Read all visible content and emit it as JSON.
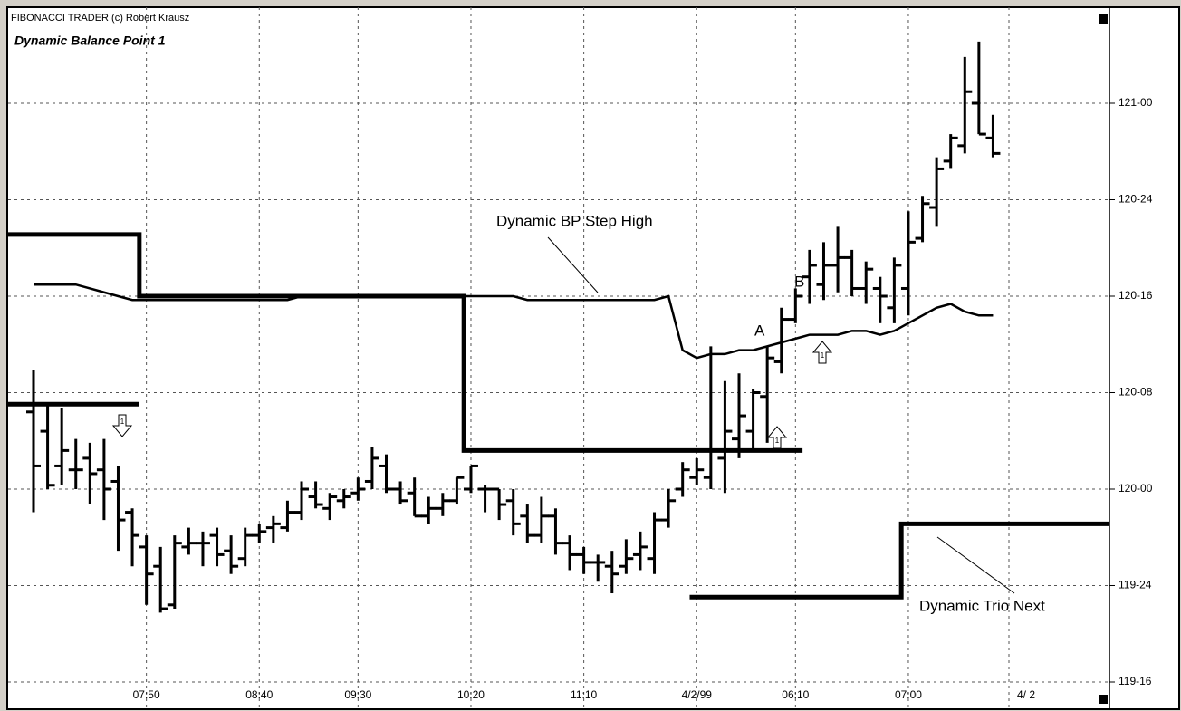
{
  "chart_data": {
    "type": "ohlc",
    "header": "FIBONACCI TRADER (c) Robert Krausz",
    "title": "Dynamic Balance Point 1",
    "categories": [
      null,
      null,
      null,
      null,
      null,
      null,
      null,
      null,
      "07:50",
      null,
      null,
      null,
      null,
      null,
      null,
      null,
      "08:40",
      null,
      null,
      null,
      null,
      null,
      null,
      "09:30",
      null,
      null,
      null,
      null,
      null,
      null,
      null,
      "10:20",
      null,
      null,
      null,
      null,
      null,
      null,
      null,
      "11:10",
      null,
      null,
      null,
      null,
      null,
      null,
      null,
      "4/2/99",
      null,
      null,
      null,
      null,
      null,
      null,
      "06:10",
      null,
      null,
      null,
      null,
      null,
      null,
      null,
      "07:00",
      null,
      null,
      null,
      null,
      null,
      null
    ],
    "end_date_label": "4/ 2",
    "high": [
      120.31,
      120.22,
      120.21,
      120.13,
      120.12,
      120.13,
      120.06,
      119.95,
      119.88,
      119.85,
      119.88,
      119.9,
      119.89,
      119.9,
      119.88,
      119.9,
      119.91,
      119.93,
      119.97,
      120.02,
      120.02,
      119.99,
      120.0,
      120.03,
      120.11,
      120.09,
      120.02,
      120.03,
      119.98,
      119.99,
      120.03,
      120.06,
      120.01,
      120.0,
      120.0,
      119.96,
      119.98,
      119.95,
      119.88,
      119.85,
      119.83,
      119.84,
      119.87,
      119.89,
      119.94,
      120.0,
      120.07,
      120.08,
      120.37,
      120.28,
      120.3,
      120.26,
      120.37,
      120.47,
      120.52,
      120.62,
      120.64,
      120.68,
      120.62,
      120.59,
      120.55,
      120.6,
      120.72,
      120.76,
      120.86,
      120.92,
      121.12,
      121.16,
      120.97
    ],
    "low": [
      119.94,
      120.0,
      120.01,
      120.0,
      119.96,
      119.92,
      119.84,
      119.8,
      119.7,
      119.68,
      119.69,
      119.83,
      119.8,
      119.8,
      119.78,
      119.8,
      119.86,
      119.86,
      119.89,
      119.92,
      119.95,
      119.92,
      119.95,
      119.97,
      120.0,
      119.99,
      119.96,
      119.93,
      119.91,
      119.93,
      119.96,
      119.99,
      119.94,
      119.92,
      119.88,
      119.86,
      119.86,
      119.83,
      119.79,
      119.78,
      119.76,
      119.73,
      119.78,
      119.79,
      119.78,
      119.9,
      119.98,
      120.01,
      120.0,
      119.99,
      120.08,
      120.1,
      120.12,
      120.3,
      120.43,
      120.48,
      120.49,
      120.51,
      120.5,
      120.48,
      120.43,
      120.43,
      120.45,
      120.64,
      120.68,
      120.83,
      120.87,
      120.92,
      120.86
    ],
    "open": [
      120.2,
      120.15,
      120.06,
      120.05,
      120.08,
      120.05,
      120.02,
      119.94,
      119.85,
      119.8,
      119.7,
      119.85,
      119.86,
      119.88,
      119.84,
      119.82,
      119.88,
      119.9,
      119.9,
      119.94,
      119.98,
      119.95,
      119.97,
      119.99,
      120.02,
      120.06,
      120.0,
      119.99,
      119.93,
      119.95,
      119.97,
      120.0,
      120.0,
      120.0,
      119.97,
      119.93,
      119.88,
      119.93,
      119.86,
      119.83,
      119.81,
      119.8,
      119.8,
      119.83,
      119.82,
      119.92,
      120.0,
      120.03,
      120.03,
      120.08,
      120.13,
      120.15,
      120.24,
      120.33,
      120.44,
      120.55,
      120.53,
      120.58,
      120.6,
      120.52,
      120.52,
      120.47,
      120.52,
      120.65,
      120.73,
      120.85,
      120.89,
      121.0,
      120.91
    ],
    "close": [
      120.06,
      120.01,
      120.1,
      120.05,
      120.04,
      120.0,
      119.92,
      119.88,
      119.78,
      119.69,
      119.86,
      119.86,
      119.86,
      119.83,
      119.8,
      119.88,
      119.89,
      119.91,
      119.94,
      120.0,
      119.96,
      119.98,
      119.98,
      120.0,
      120.08,
      120.0,
      119.97,
      119.93,
      119.95,
      119.97,
      120.03,
      120.06,
      120.0,
      119.96,
      119.91,
      119.88,
      119.93,
      119.86,
      119.83,
      119.81,
      119.81,
      119.78,
      119.82,
      119.85,
      119.92,
      119.97,
      120.05,
      120.05,
      120.1,
      120.15,
      120.19,
      120.25,
      120.34,
      120.44,
      120.5,
      120.58,
      120.58,
      120.6,
      120.52,
      120.57,
      120.5,
      120.58,
      120.64,
      120.74,
      120.83,
      120.91,
      121.03,
      120.92,
      120.87
    ],
    "lines": [
      {
        "values": [
          120.53,
          120.53,
          120.53,
          120.53,
          120.52,
          120.51,
          120.5,
          120.49,
          120.49,
          120.49,
          120.49,
          120.49,
          120.49,
          120.49,
          120.49,
          120.49,
          120.49,
          120.49,
          120.49,
          120.5,
          120.5,
          120.5,
          120.5,
          120.5,
          120.5,
          120.5,
          120.5,
          120.5,
          120.5,
          120.5,
          120.5,
          120.5,
          120.5,
          120.5,
          120.5,
          120.49,
          120.49,
          120.49,
          120.49,
          120.49,
          120.49,
          120.49,
          120.49,
          120.49,
          120.49,
          120.5,
          120.36,
          120.34,
          120.35,
          120.35,
          120.36,
          120.36,
          120.37,
          120.38,
          120.39,
          120.4,
          120.4,
          120.4,
          120.41,
          120.41,
          120.4,
          120.41,
          120.43,
          120.45,
          120.47,
          120.48,
          120.46,
          120.45,
          120.45
        ],
        "width": 2.5,
        "step": false
      },
      {
        "values": [
          120.66,
          120.66,
          120.66,
          120.66,
          120.66,
          120.66,
          120.66,
          120.66,
          120.5,
          120.5,
          120.5,
          120.5,
          120.5,
          120.5,
          120.5,
          120.5,
          120.5,
          120.5,
          120.5,
          120.5,
          120.5,
          120.5,
          120.5,
          120.5,
          120.5,
          120.5,
          120.5,
          120.5,
          120.5,
          120.5,
          120.5,
          120.1,
          120.1,
          120.1,
          120.1,
          120.1,
          120.1,
          120.1,
          120.1,
          120.1,
          120.1,
          120.1,
          120.1,
          120.1,
          120.1,
          120.1,
          120.1,
          120.1,
          120.1,
          120.1,
          120.1,
          120.1,
          120.1,
          120.1,
          120.1,
          null,
          null,
          null,
          null,
          null,
          null,
          null,
          null,
          null,
          null,
          null,
          null,
          null,
          null
        ],
        "width": 5,
        "step": true
      },
      {
        "values": [
          120.22,
          120.22,
          120.22,
          120.22,
          120.22,
          120.22,
          120.22,
          120.22,
          null,
          null,
          null,
          null,
          null,
          null,
          null,
          null,
          null,
          null,
          null,
          null,
          null,
          null,
          null,
          null,
          null,
          null,
          null,
          null,
          null,
          null,
          null,
          null,
          null,
          null,
          null,
          null,
          null,
          null,
          null,
          null,
          null,
          null,
          null,
          null,
          null,
          null,
          null,
          119.72,
          119.72,
          119.72,
          119.72,
          119.72,
          119.72,
          119.72,
          119.72,
          119.72,
          119.72,
          119.72,
          119.72,
          119.72,
          119.72,
          119.72,
          119.91,
          119.91,
          119.91,
          119.91,
          119.91,
          119.91,
          119.91
        ],
        "width": 5,
        "step": true
      }
    ],
    "annotations": {
      "step_high": "Dynamic BP Step High",
      "trio_next": "Dynamic Trio Next",
      "a": "A",
      "b": "B",
      "arrow_label": "1"
    },
    "ylim": [
      119.5,
      121.22
    ],
    "yticks": [
      {
        "value": 119.5,
        "label": "119-16"
      },
      {
        "value": 119.75,
        "label": "119-24"
      },
      {
        "value": 120,
        "label": "120-00"
      },
      {
        "value": 120.25,
        "label": "120-08"
      },
      {
        "value": 120.5,
        "label": "120-16"
      },
      {
        "value": 120.75,
        "label": "120-24"
      },
      {
        "value": 121,
        "label": "121-00"
      }
    ],
    "grid": true,
    "color": "#000000"
  }
}
